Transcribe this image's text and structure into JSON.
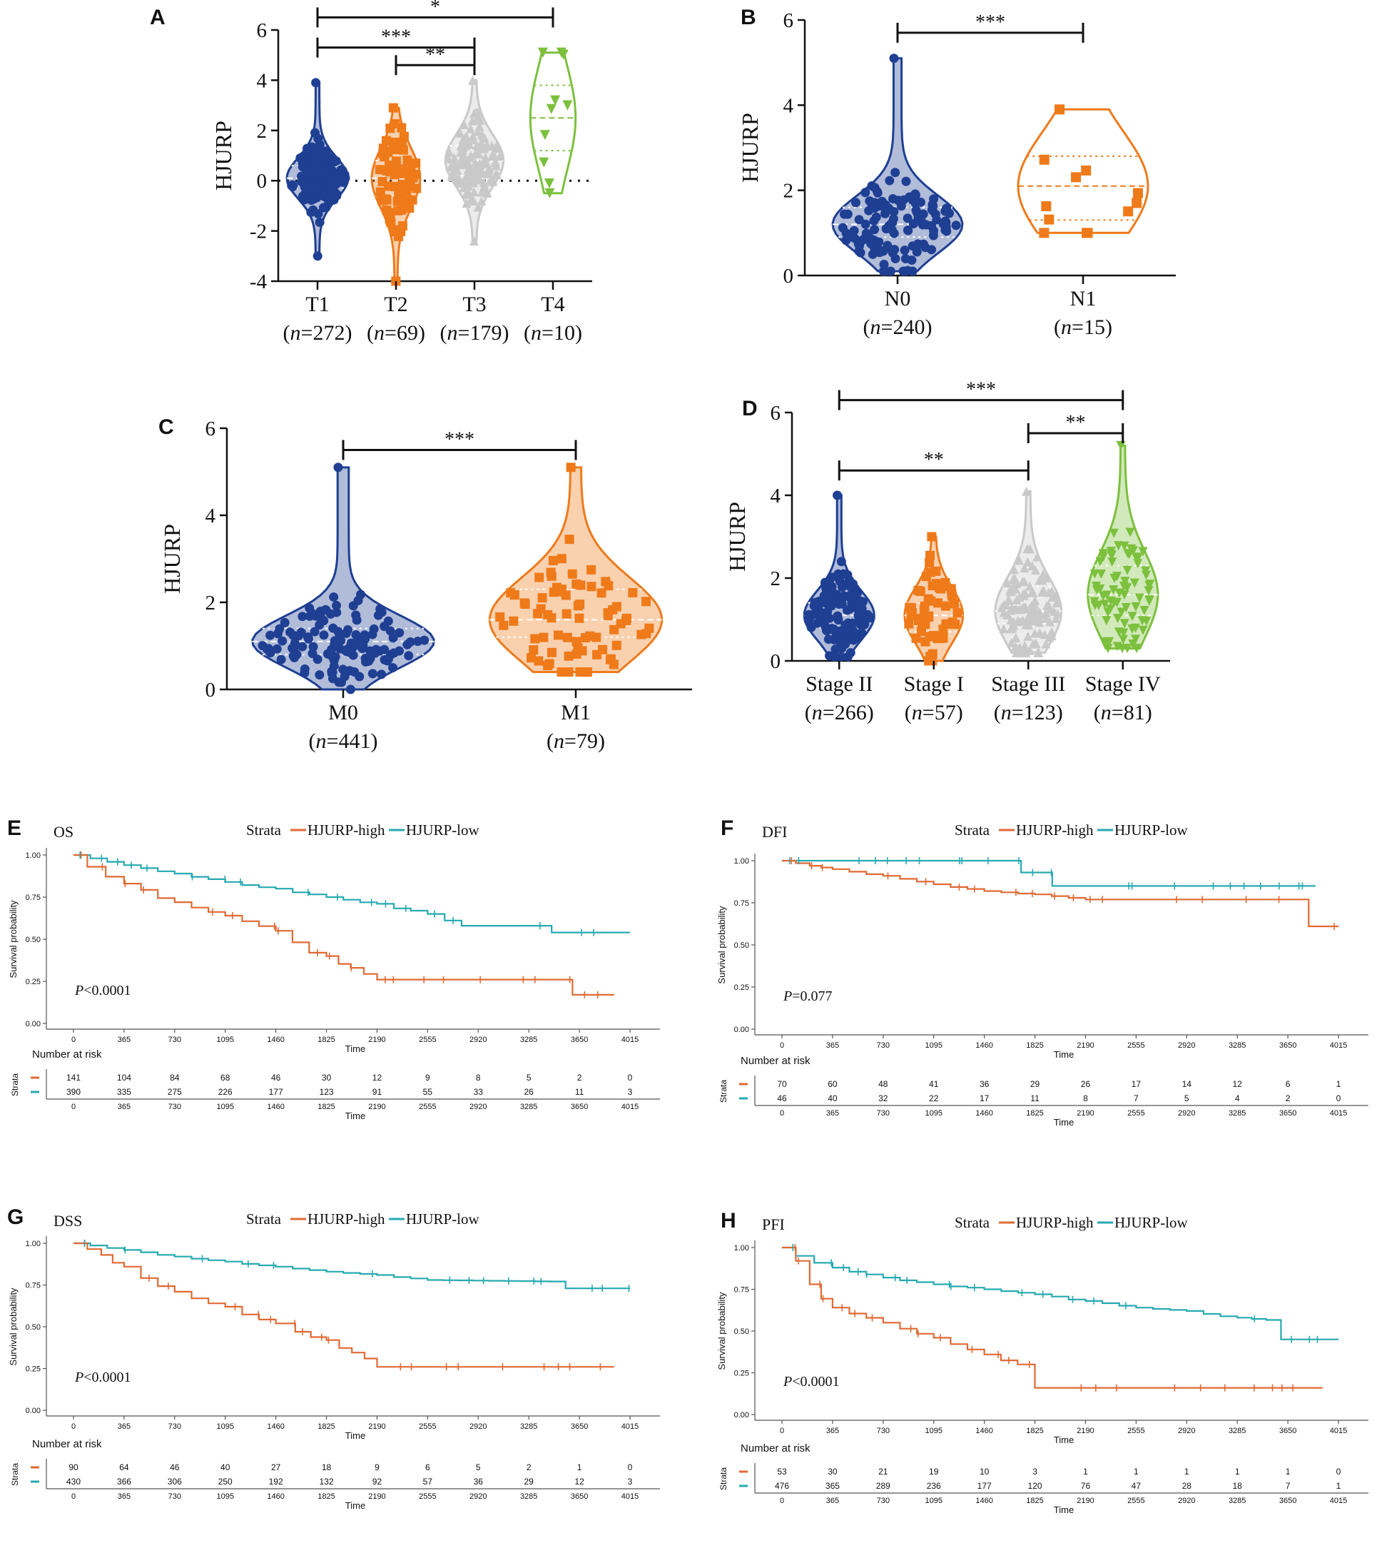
{
  "violins": [
    {
      "panel_letter": "A",
      "ylabel": "HJURP",
      "ylim": [
        -4,
        6
      ],
      "yticks": [
        "-4",
        "-2",
        "0",
        "2",
        "4",
        "6"
      ],
      "zero_line": true,
      "groups": [
        {
          "name": "T1",
          "n": "(n=272)",
          "color": "#1f3f93",
          "marker": "circle",
          "range": [
            -3.0,
            3.9
          ],
          "center": 0.1,
          "q1": -0.3,
          "q3": 0.6,
          "spread": 0.95
        },
        {
          "name": "T2",
          "n": "(n=69)",
          "color": "#ef7a1a",
          "marker": "square",
          "range": [
            -4.0,
            2.9
          ],
          "center": 0.1,
          "q1": -0.6,
          "q3": 0.8,
          "spread": 0.75
        },
        {
          "name": "T3",
          "n": "(n=179)",
          "color": "#c9c9c9",
          "marker": "triangle",
          "range": [
            -2.4,
            4.0
          ],
          "center": 0.8,
          "q1": 0.2,
          "q3": 1.4,
          "spread": 0.9
        },
        {
          "name": "T4",
          "n": "(n=10)",
          "color": "#7cc03d",
          "marker": "triangle-down",
          "range": [
            -0.5,
            5.1
          ],
          "center": 2.5,
          "q1": 1.2,
          "q3": 3.8,
          "spread": 0.7,
          "outline": true
        }
      ],
      "significance": [
        {
          "from": 0,
          "to": 3,
          "label": "*",
          "level": 6.5
        },
        {
          "from": 0,
          "to": 2,
          "label": "***",
          "level": 5.3
        },
        {
          "from": 1,
          "to": 2,
          "label": "**",
          "level": 4.6
        }
      ]
    },
    {
      "panel_letter": "B",
      "ylabel": "HJURP",
      "ylim": [
        0,
        6
      ],
      "yticks": [
        "0",
        "2",
        "4",
        "6"
      ],
      "zero_line": false,
      "groups": [
        {
          "name": "N0",
          "n": "(n=240)",
          "color": "#1f3f93",
          "marker": "circle",
          "range": [
            0.1,
            5.1
          ],
          "center": 1.2,
          "q1": 0.9,
          "q3": 1.6,
          "spread": 0.85
        },
        {
          "name": "N1",
          "n": "(n=15)",
          "color": "#ef7a1a",
          "marker": "square",
          "range": [
            1.0,
            3.9
          ],
          "center": 2.1,
          "q1": 1.3,
          "q3": 2.8,
          "spread": 0.85,
          "outline": true
        }
      ],
      "significance": [
        {
          "from": 0,
          "to": 1,
          "label": "***",
          "level": 5.7
        }
      ]
    },
    {
      "panel_letter": "C",
      "ylabel": "HJURP",
      "ylim": [
        0,
        6
      ],
      "yticks": [
        "0",
        "2",
        "4",
        "6"
      ],
      "zero_line": false,
      "groups": [
        {
          "name": "M0",
          "n": "(n=441)",
          "color": "#1f3f93",
          "marker": "circle",
          "range": [
            0.0,
            5.1
          ],
          "center": 1.1,
          "q1": 0.8,
          "q3": 1.4,
          "spread": 0.95
        },
        {
          "name": "M1",
          "n": "(n=79)",
          "color": "#ef7a1a",
          "marker": "square",
          "range": [
            0.4,
            5.1
          ],
          "center": 1.6,
          "q1": 1.2,
          "q3": 2.3,
          "spread": 0.9
        }
      ],
      "significance": [
        {
          "from": 0,
          "to": 1,
          "label": "***",
          "level": 5.5
        }
      ]
    },
    {
      "panel_letter": "D",
      "ylabel": "HJURP",
      "ylim": [
        0,
        6
      ],
      "yticks": [
        "0",
        "2",
        "4",
        "6"
      ],
      "zero_line": false,
      "groups": [
        {
          "name": "Stage II",
          "n": "(n=266)",
          "color": "#1f3f93",
          "marker": "circle",
          "range": [
            0.1,
            4.0
          ],
          "center": 1.1,
          "q1": 0.8,
          "q3": 1.4,
          "spread": 0.9
        },
        {
          "name": "Stage I",
          "n": "(n=57)",
          "color": "#ef7a1a",
          "marker": "square",
          "range": [
            0.0,
            3.0
          ],
          "center": 1.1,
          "q1": 0.7,
          "q3": 1.4,
          "spread": 0.75
        },
        {
          "name": "Stage III",
          "n": "(n=123)",
          "color": "#c9c9c9",
          "marker": "triangle",
          "range": [
            0.2,
            4.1
          ],
          "center": 1.2,
          "q1": 0.9,
          "q3": 1.8,
          "spread": 0.85
        },
        {
          "name": "Stage IV",
          "n": "(n=81)",
          "color": "#7cc03d",
          "marker": "triangle-down",
          "range": [
            0.3,
            5.2
          ],
          "center": 1.6,
          "q1": 1.1,
          "q3": 2.3,
          "spread": 0.9
        }
      ],
      "significance": [
        {
          "from": 0,
          "to": 3,
          "label": "***",
          "level": 6.3
        },
        {
          "from": 2,
          "to": 3,
          "label": "**",
          "level": 5.5
        },
        {
          "from": 0,
          "to": 2,
          "label": "**",
          "level": 4.6
        }
      ]
    }
  ],
  "survival": [
    {
      "panel_letter": "E",
      "title": "OS",
      "legend_title": "Strata",
      "legend_high": "HJURP-high",
      "legend_low": "HJURP-low",
      "pvalue": "P<0.0001",
      "ylabel": "Survival probability",
      "xlabel": "Time",
      "yticks": [
        "0.00",
        "0.25",
        "0.50",
        "0.75",
        "1.00"
      ],
      "xticks": [
        "0",
        "365",
        "730",
        "1095",
        "1460",
        "1825",
        "2190",
        "2555",
        "2920",
        "3285",
        "3650",
        "4015"
      ],
      "xmax": 4015,
      "risk_title": "Number at risk",
      "strata_label": "Strata",
      "risk_high": [
        "141",
        "104",
        "84",
        "68",
        "46",
        "30",
        "12",
        "9",
        "8",
        "5",
        "2",
        "0"
      ],
      "risk_low": [
        "390",
        "335",
        "275",
        "226",
        "177",
        "123",
        "91",
        "55",
        "33",
        "26",
        "11",
        "3"
      ],
      "high_curve": [
        [
          0,
          1.0
        ],
        [
          100,
          0.93
        ],
        [
          365,
          0.83
        ],
        [
          730,
          0.72
        ],
        [
          1095,
          0.64
        ],
        [
          1460,
          0.55
        ],
        [
          1700,
          0.42
        ],
        [
          1825,
          0.4
        ],
        [
          2000,
          0.33
        ],
        [
          2190,
          0.26
        ],
        [
          3600,
          0.26
        ],
        [
          3600,
          0.17
        ],
        [
          3900,
          0.17
        ]
      ],
      "low_curve": [
        [
          0,
          1.0
        ],
        [
          365,
          0.94
        ],
        [
          730,
          0.89
        ],
        [
          1095,
          0.84
        ],
        [
          1460,
          0.8
        ],
        [
          1825,
          0.75
        ],
        [
          2190,
          0.71
        ],
        [
          2555,
          0.65
        ],
        [
          2800,
          0.58
        ],
        [
          3450,
          0.58
        ],
        [
          3450,
          0.54
        ],
        [
          4015,
          0.54
        ]
      ]
    },
    {
      "panel_letter": "F",
      "title": "DFI",
      "legend_title": "Strata",
      "legend_high": "HJURP-high",
      "legend_low": "HJURP-low",
      "pvalue": "P=0.077",
      "ylabel": "Survival probability",
      "xlabel": "Time",
      "yticks": [
        "0.00",
        "0.25",
        "0.50",
        "0.75",
        "1.00"
      ],
      "xticks": [
        "0",
        "365",
        "730",
        "1095",
        "1460",
        "1825",
        "2190",
        "2555",
        "2920",
        "3285",
        "3650",
        "4015"
      ],
      "xmax": 4015,
      "risk_title": "Number at risk",
      "strata_label": "Strata",
      "risk_high": [
        "70",
        "60",
        "48",
        "41",
        "36",
        "29",
        "26",
        "17",
        "14",
        "12",
        "6",
        "1"
      ],
      "risk_low": [
        "46",
        "40",
        "32",
        "22",
        "17",
        "11",
        "8",
        "7",
        "5",
        "4",
        "2",
        "0"
      ],
      "high_curve": [
        [
          0,
          1.0
        ],
        [
          200,
          0.97
        ],
        [
          365,
          0.95
        ],
        [
          730,
          0.91
        ],
        [
          1095,
          0.86
        ],
        [
          1460,
          0.82
        ],
        [
          1825,
          0.8
        ],
        [
          2190,
          0.77
        ],
        [
          3800,
          0.77
        ],
        [
          3800,
          0.61
        ],
        [
          4015,
          0.61
        ]
      ],
      "low_curve": [
        [
          0,
          1.0
        ],
        [
          1725,
          1.0
        ],
        [
          1725,
          0.93
        ],
        [
          1950,
          0.93
        ],
        [
          1950,
          0.85
        ],
        [
          3850,
          0.85
        ]
      ]
    },
    {
      "panel_letter": "G",
      "title": "DSS",
      "legend_title": "Strata",
      "legend_high": "HJURP-high",
      "legend_low": "HJURP-low",
      "pvalue": "P<0.0001",
      "ylabel": "Survival probability",
      "xlabel": "Time",
      "yticks": [
        "0.00",
        "0.25",
        "0.50",
        "0.75",
        "1.00"
      ],
      "xticks": [
        "0",
        "365",
        "730",
        "1095",
        "1460",
        "1825",
        "2190",
        "2555",
        "2920",
        "3285",
        "3650",
        "4015"
      ],
      "xmax": 4015,
      "risk_title": "Number at risk",
      "strata_label": "Strata",
      "risk_high": [
        "90",
        "64",
        "46",
        "40",
        "27",
        "18",
        "9",
        "6",
        "5",
        "2",
        "1",
        "0"
      ],
      "risk_low": [
        "430",
        "366",
        "306",
        "250",
        "192",
        "132",
        "92",
        "57",
        "36",
        "29",
        "12",
        "3"
      ],
      "high_curve": [
        [
          0,
          1.0
        ],
        [
          200,
          0.93
        ],
        [
          365,
          0.86
        ],
        [
          730,
          0.71
        ],
        [
          1095,
          0.62
        ],
        [
          1460,
          0.52
        ],
        [
          1600,
          0.47
        ],
        [
          1825,
          0.42
        ],
        [
          2100,
          0.31
        ],
        [
          2190,
          0.26
        ],
        [
          3900,
          0.26
        ]
      ],
      "low_curve": [
        [
          0,
          1.0
        ],
        [
          365,
          0.96
        ],
        [
          730,
          0.92
        ],
        [
          1095,
          0.89
        ],
        [
          1460,
          0.86
        ],
        [
          1825,
          0.83
        ],
        [
          2190,
          0.81
        ],
        [
          2555,
          0.78
        ],
        [
          3550,
          0.77
        ],
        [
          3550,
          0.73
        ],
        [
          4015,
          0.73
        ]
      ]
    },
    {
      "panel_letter": "H",
      "title": "PFI",
      "legend_title": "Strata",
      "legend_high": "HJURP-high",
      "legend_low": "HJURP-low",
      "pvalue": "P<0.0001",
      "ylabel": "Survival probability",
      "xlabel": "Time",
      "yticks": [
        "0.00",
        "0.25",
        "0.50",
        "0.75",
        "1.00"
      ],
      "xticks": [
        "0",
        "365",
        "730",
        "1095",
        "1460",
        "1825",
        "2190",
        "2555",
        "2920",
        "3285",
        "3650",
        "4015"
      ],
      "xmax": 4015,
      "risk_title": "Number at risk",
      "strata_label": "Strata",
      "risk_high": [
        "53",
        "30",
        "21",
        "19",
        "10",
        "3",
        "1",
        "1",
        "1",
        "1",
        "1",
        "0"
      ],
      "risk_low": [
        "476",
        "365",
        "289",
        "236",
        "177",
        "120",
        "76",
        "47",
        "28",
        "18",
        "7",
        "1"
      ],
      "high_curve": [
        [
          0,
          1.0
        ],
        [
          100,
          0.92
        ],
        [
          200,
          0.78
        ],
        [
          365,
          0.64
        ],
        [
          730,
          0.55
        ],
        [
          1095,
          0.46
        ],
        [
          1460,
          0.36
        ],
        [
          1700,
          0.3
        ],
        [
          1825,
          0.16
        ],
        [
          3900,
          0.16
        ]
      ],
      "low_curve": [
        [
          0,
          1.0
        ],
        [
          100,
          0.95
        ],
        [
          365,
          0.88
        ],
        [
          730,
          0.82
        ],
        [
          1095,
          0.78
        ],
        [
          1460,
          0.75
        ],
        [
          1825,
          0.72
        ],
        [
          2190,
          0.68
        ],
        [
          2555,
          0.64
        ],
        [
          2920,
          0.62
        ],
        [
          3285,
          0.58
        ],
        [
          3600,
          0.56
        ],
        [
          3600,
          0.45
        ],
        [
          4015,
          0.45
        ]
      ]
    }
  ],
  "colors": {
    "high": "#e06a35",
    "low": "#26aab0"
  },
  "chart_data": [
    {
      "type": "violin",
      "panel": "A",
      "ylabel": "HJURP",
      "ylim": [
        -4,
        6
      ],
      "categories": [
        "T1",
        "T2",
        "T3",
        "T4"
      ],
      "n": [
        272,
        69,
        179,
        10
      ],
      "median": [
        0.1,
        0.1,
        0.8,
        2.5
      ]
    },
    {
      "type": "violin",
      "panel": "B",
      "ylabel": "HJURP",
      "ylim": [
        0,
        6
      ],
      "categories": [
        "N0",
        "N1"
      ],
      "n": [
        240,
        15
      ],
      "median": [
        1.2,
        2.1
      ]
    },
    {
      "type": "violin",
      "panel": "C",
      "ylabel": "HJURP",
      "ylim": [
        0,
        6
      ],
      "categories": [
        "M0",
        "M1"
      ],
      "n": [
        441,
        79
      ],
      "median": [
        1.1,
        1.6
      ]
    },
    {
      "type": "violin",
      "panel": "D",
      "ylabel": "HJURP",
      "ylim": [
        0,
        6
      ],
      "categories": [
        "Stage II",
        "Stage I",
        "Stage III",
        "Stage IV"
      ],
      "n": [
        266,
        57,
        123,
        81
      ],
      "median": [
        1.1,
        1.1,
        1.2,
        1.6
      ]
    },
    {
      "type": "line",
      "panel": "E",
      "title": "OS",
      "xlabel": "Time",
      "ylabel": "Survival probability",
      "series": [
        {
          "name": "HJURP-high"
        },
        {
          "name": "HJURP-low"
        }
      ]
    },
    {
      "type": "line",
      "panel": "F",
      "title": "DFI",
      "xlabel": "Time",
      "ylabel": "Survival probability",
      "series": [
        {
          "name": "HJURP-high"
        },
        {
          "name": "HJURP-low"
        }
      ]
    },
    {
      "type": "line",
      "panel": "G",
      "title": "DSS",
      "xlabel": "Time",
      "ylabel": "Survival probability",
      "series": [
        {
          "name": "HJURP-high"
        },
        {
          "name": "HJURP-low"
        }
      ]
    },
    {
      "type": "line",
      "panel": "H",
      "title": "PFI",
      "xlabel": "Time",
      "ylabel": "Survival probability",
      "series": [
        {
          "name": "HJURP-high"
        },
        {
          "name": "HJURP-low"
        }
      ]
    }
  ]
}
